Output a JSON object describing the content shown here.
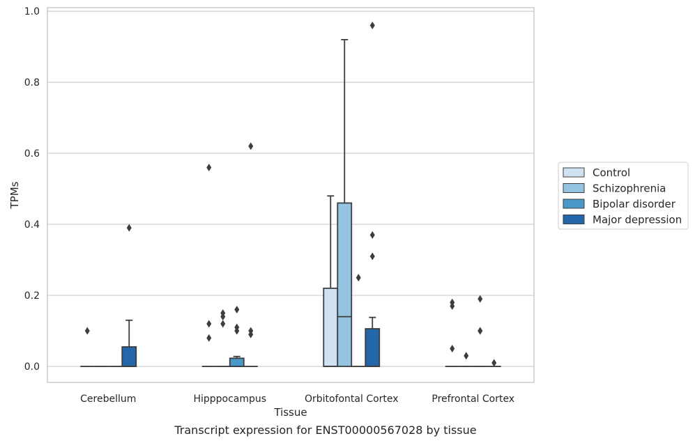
{
  "chart_data": {
    "type": "box",
    "title": "",
    "xlabel": "Tissue",
    "ylabel": "TPMs",
    "caption": "Transcript expression for ENST00000567028 by tissue",
    "ylim": [
      -0.045,
      1.01
    ],
    "yticks": [
      "0.0",
      "0.2",
      "0.4",
      "0.6",
      "0.8",
      "1.0"
    ],
    "categories": [
      "Cerebellum",
      "Hipppocampus",
      "Orbitofontal Cortex",
      "Prefrontal Cortex"
    ],
    "grid": "horizontal",
    "legend_position": "right",
    "series": [
      {
        "name": "Control",
        "color": "#d0e1f2",
        "boxes": [
          {
            "q1": 0,
            "median": 0,
            "q3": 0,
            "whisker_low": 0,
            "whisker_high": 0,
            "outliers": [
              0.1
            ]
          },
          {
            "q1": 0,
            "median": 0,
            "q3": 0,
            "whisker_low": 0,
            "whisker_high": 0,
            "outliers": [
              0.56,
              0.12,
              0.08
            ]
          },
          {
            "q1": 0,
            "median": 0,
            "q3": 0.22,
            "whisker_low": 0,
            "whisker_high": 0.48,
            "outliers": []
          },
          {
            "q1": 0,
            "median": 0,
            "q3": 0,
            "whisker_low": 0,
            "whisker_high": 0,
            "outliers": [
              0.18,
              0.17,
              0.05
            ]
          }
        ]
      },
      {
        "name": "Schizophrenia",
        "color": "#94c4df",
        "boxes": [
          {
            "q1": 0,
            "median": 0,
            "q3": 0,
            "whisker_low": 0,
            "whisker_high": 0,
            "outliers": []
          },
          {
            "q1": 0,
            "median": 0,
            "q3": 0,
            "whisker_low": 0,
            "whisker_high": 0,
            "outliers": [
              0.15,
              0.14,
              0.12
            ]
          },
          {
            "q1": 0,
            "median": 0.14,
            "q3": 0.46,
            "whisker_low": 0,
            "whisker_high": 0.92,
            "outliers": []
          },
          {
            "q1": 0,
            "median": 0,
            "q3": 0,
            "whisker_low": 0,
            "whisker_high": 0,
            "outliers": [
              0.03
            ]
          }
        ]
      },
      {
        "name": "Bipolar disorder",
        "color": "#4a98c9",
        "boxes": [
          {
            "q1": 0,
            "median": 0,
            "q3": 0,
            "whisker_low": 0,
            "whisker_high": 0,
            "outliers": []
          },
          {
            "q1": 0,
            "median": 0,
            "q3": 0.023,
            "whisker_low": 0,
            "whisker_high": 0.028,
            "outliers": [
              0.16,
              0.11,
              0.1
            ]
          },
          {
            "q1": 0,
            "median": 0,
            "q3": 0,
            "whisker_low": 0,
            "whisker_high": 0,
            "outliers": [
              0.25
            ]
          },
          {
            "q1": 0,
            "median": 0,
            "q3": 0,
            "whisker_low": 0,
            "whisker_high": 0,
            "outliers": [
              0.1,
              0.19,
              0.1
            ]
          }
        ]
      },
      {
        "name": "Major depression",
        "color": "#2366aa",
        "boxes": [
          {
            "q1": 0,
            "median": 0,
            "q3": 0.055,
            "whisker_low": 0,
            "whisker_high": 0.13,
            "outliers": [
              0.39
            ]
          },
          {
            "q1": 0,
            "median": 0,
            "q3": 0,
            "whisker_low": 0,
            "whisker_high": 0,
            "outliers": [
              0.62,
              0.1,
              0.09
            ]
          },
          {
            "q1": 0,
            "median": 0,
            "q3": 0.106,
            "whisker_low": 0,
            "whisker_high": 0.138,
            "outliers": [
              0.96,
              0.37,
              0.31
            ]
          },
          {
            "q1": 0,
            "median": 0,
            "q3": 0,
            "whisker_low": 0,
            "whisker_high": 0,
            "outliers": [
              0.01
            ]
          }
        ]
      }
    ]
  }
}
